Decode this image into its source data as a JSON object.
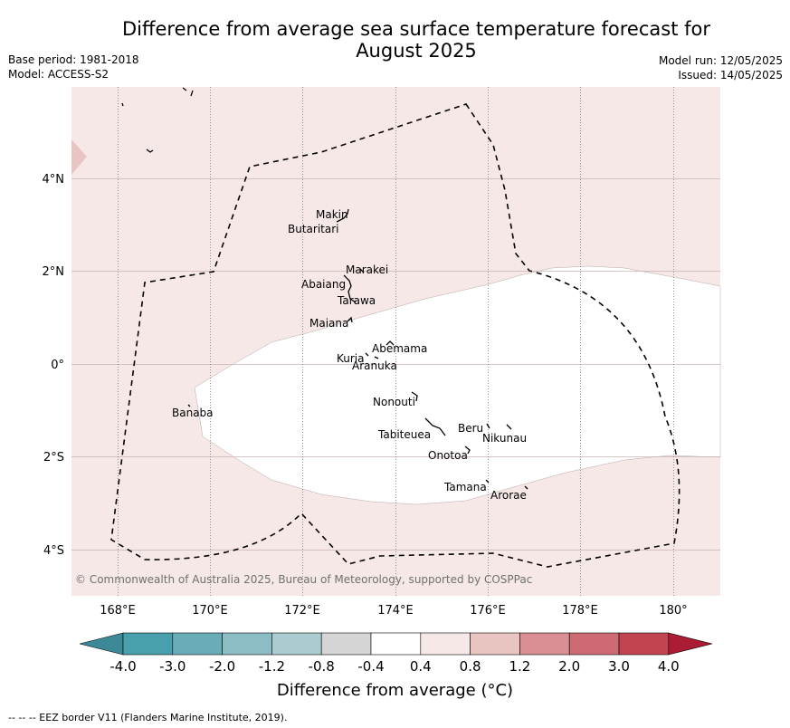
{
  "title_line1": "Difference from average sea surface temperature forecast for",
  "title_line2": "August 2025",
  "base_period": "Base period: 1981-2018",
  "model": "Model: ACCESS-S2",
  "model_run": "Model run: 12/05/2025",
  "issued": "Issued: 14/05/2025",
  "copyright": "© Commonwealth of Australia 2025, Bureau of Meteorology, supported by COSPPac",
  "x_ticks": [
    "168°E",
    "170°E",
    "172°E",
    "174°E",
    "176°E",
    "178°E",
    "180°"
  ],
  "y_ticks": [
    "4°N",
    "2°N",
    "0°",
    "2°S",
    "4°S"
  ],
  "islands": [
    "Makin",
    "Butaritari",
    "Marakei",
    "Abaiang",
    "Tarawa",
    "Maiana",
    "Abemama",
    "Kuria",
    "Aranuka",
    "Nonouti",
    "Banaba",
    "Beru",
    "Nikunau",
    "Tabiteuea",
    "Onotoa",
    "Tamana",
    "Arorae"
  ],
  "colorbar": {
    "labels": [
      "-4.0",
      "-3.0",
      "-2.0",
      "-1.2",
      "-0.8",
      "-0.4",
      "0.4",
      "0.8",
      "1.2",
      "2.0",
      "3.0",
      "4.0"
    ],
    "colors": [
      "#3b8996",
      "#49a0ad",
      "#6aadb8",
      "#8cbcc4",
      "#aacbcf",
      "#d5d5d5",
      "#ffffff",
      "#f5e8e7",
      "#e8c5c1",
      "#d98f95",
      "#cd6a74",
      "#c24451",
      "#ac1c34"
    ],
    "title": "Difference from average (°C)"
  },
  "footer": "--  --  -- EEZ border V11 (Flanders Marine Institute, 2019)."
}
